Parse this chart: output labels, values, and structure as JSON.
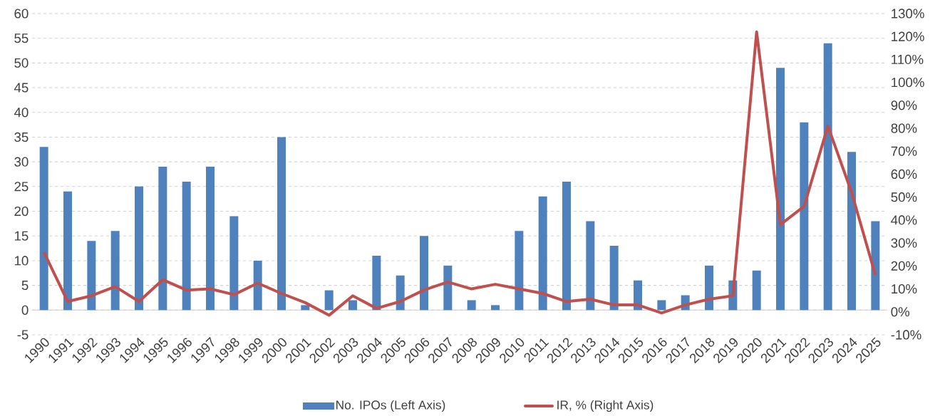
{
  "chart_data": {
    "type": "bar",
    "categories": [
      "1990",
      "1991",
      "1992",
      "1993",
      "1994",
      "1995",
      "1996",
      "1997",
      "1998",
      "1999",
      "2000",
      "2001",
      "2002",
      "2003",
      "2004",
      "2005",
      "2006",
      "2007",
      "2008",
      "2009",
      "2010",
      "2011",
      "2012",
      "2013",
      "2014",
      "2015",
      "2016",
      "2017",
      "2018",
      "2019",
      "2020",
      "2021",
      "2022",
      "2023",
      "2024",
      "2025"
    ],
    "series": [
      {
        "name": "No. IPOs (Left Axis)",
        "color": "#4f81bd",
        "values": [
          33,
          24,
          14,
          16,
          25,
          29,
          26,
          29,
          19,
          10,
          35,
          1,
          4,
          2,
          11,
          7,
          15,
          9,
          2,
          1,
          16,
          23,
          26,
          18,
          13,
          6,
          2,
          3,
          9,
          6,
          8,
          49,
          38,
          54,
          32,
          18
        ]
      },
      {
        "name": "IR, % (Right Axis)",
        "type": "line",
        "axis": "y2",
        "color": "#c0504d",
        "values": [
          26,
          4.5,
          7,
          11,
          4.5,
          14,
          9.5,
          10,
          7.5,
          12.5,
          8,
          4,
          -1.5,
          7,
          1.5,
          4.5,
          9.5,
          13,
          10,
          12,
          10,
          8,
          4.5,
          5.5,
          3,
          3,
          -0.5,
          3,
          5.5,
          7,
          122,
          38,
          46,
          81,
          52,
          16
        ]
      }
    ],
    "ylim": [
      -5,
      60
    ],
    "yticks": [
      -5,
      0,
      5,
      10,
      15,
      20,
      25,
      30,
      35,
      40,
      45,
      50,
      55,
      60
    ],
    "y2lim": [
      -10,
      130
    ],
    "y2ticks": [
      {
        "value": -10,
        "label": "-10%"
      },
      {
        "value": 0,
        "label": "0%"
      },
      {
        "value": 10,
        "label": "10%"
      },
      {
        "value": 20,
        "label": "20%"
      },
      {
        "value": 30,
        "label": "30%"
      },
      {
        "value": 40,
        "label": "40%"
      },
      {
        "value": 50,
        "label": "50%"
      },
      {
        "value": 60,
        "label": "60%"
      },
      {
        "value": 70,
        "label": "70%"
      },
      {
        "value": 80,
        "label": "80%"
      },
      {
        "value": 90,
        "label": "90%"
      },
      {
        "value": 100,
        "label": "100%"
      },
      {
        "value": 110,
        "label": "110%"
      },
      {
        "value": 120,
        "label": "120%"
      },
      {
        "value": 130,
        "label": "130%"
      }
    ],
    "grid": "y",
    "legend": "bottom"
  }
}
